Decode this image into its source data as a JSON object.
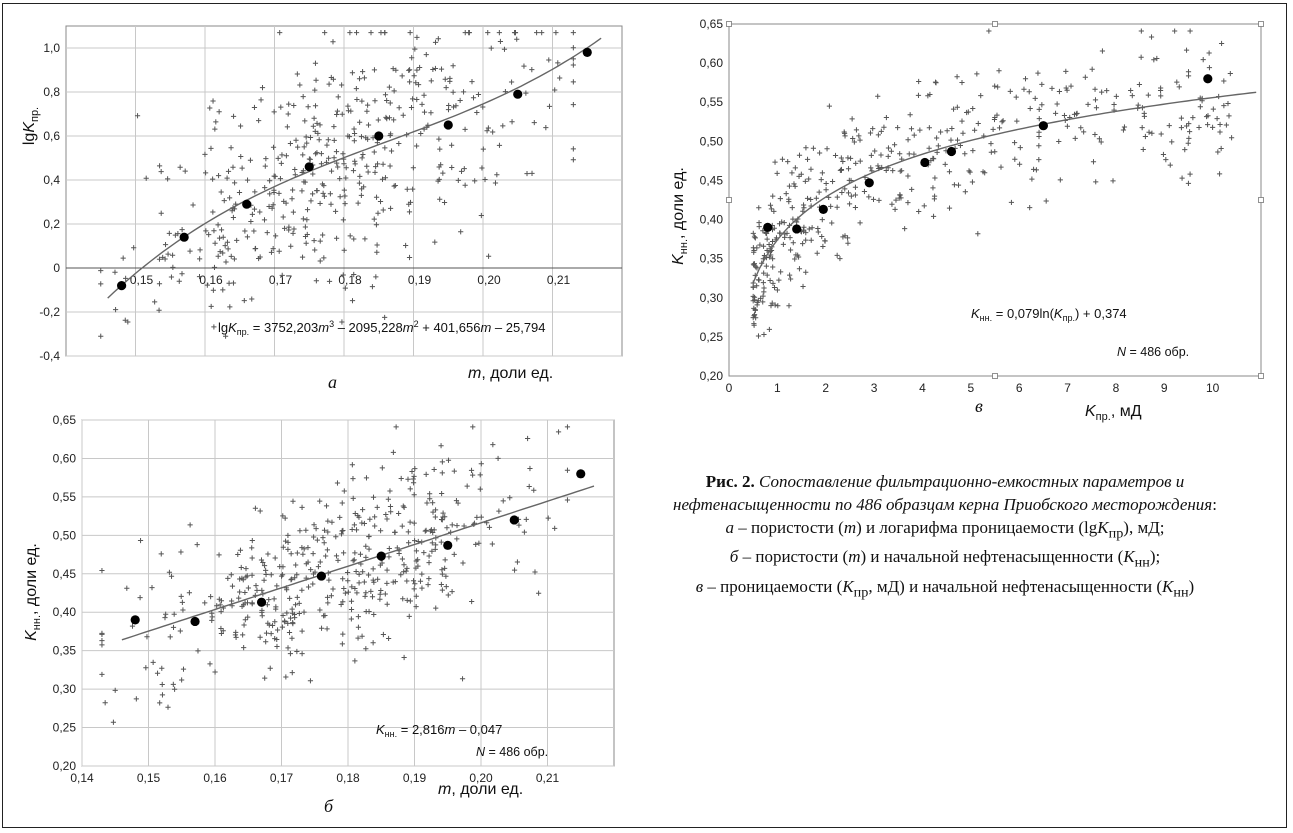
{
  "caption": {
    "title": "Рис. 2.",
    "text": "Сопоставление фильтрационно-емкостных параметров и нефтенасыщенности по 486 образцам керна Приобского месторождения",
    "items": [
      "а – пористости (m) и логарифма проницаемости (lgKпр), мД;",
      "б – пористости (m) и начальной нефтенасыщенности (Kнн);",
      "в – проницаемости (Kпр, мД) и начальной нефтенасыщенности (Kнн)"
    ]
  },
  "chart_data": [
    {
      "id": "a",
      "type": "scatter",
      "panel_letter": "а",
      "xlabel": "m, доли ед.",
      "ylabel": "lgKпр.",
      "xlim": [
        0.14,
        0.22
      ],
      "ylim": [
        -0.4,
        1.1
      ],
      "xticks": [
        0.15,
        0.16,
        0.17,
        0.18,
        0.19,
        0.2,
        0.21
      ],
      "xtick_labels": [
        "0,15",
        "0,16",
        "0,17",
        "0,18",
        "0,19",
        "0,20",
        "0,21"
      ],
      "yticks": [
        -0.4,
        -0.2,
        0,
        0.2,
        0.4,
        0.6,
        0.8,
        1.0
      ],
      "ytick_labels": [
        "-0,4",
        "-0,2",
        "0",
        "0,2",
        "0,4",
        "0,6",
        "0,8",
        "1,0"
      ],
      "grid": true,
      "equation": "lgKпр. = 3752,203m³ – 2095,228m² + 401,656m – 25,794",
      "trend": {
        "kind": "cubic",
        "coef": [
          3752.203,
          -2095.228,
          401.656,
          -25.794
        ],
        "xrange": [
          0.146,
          0.217
        ]
      },
      "bin_means": {
        "x": [
          0.148,
          0.157,
          0.166,
          0.175,
          0.185,
          0.195,
          0.205,
          0.215
        ],
        "y": [
          -0.08,
          0.14,
          0.29,
          0.46,
          0.6,
          0.65,
          0.79,
          0.98
        ]
      },
      "cloud": {
        "n": 486,
        "xrange": [
          0.145,
          0.213
        ],
        "spread": 0.26
      }
    },
    {
      "id": "b",
      "type": "scatter",
      "panel_letter": "б",
      "xlabel": "m, доли ед.",
      "ylabel": "Kнн., доли ед.",
      "xlim": [
        0.14,
        0.22
      ],
      "ylim": [
        0.2,
        0.65
      ],
      "xticks": [
        0.14,
        0.15,
        0.16,
        0.17,
        0.18,
        0.19,
        0.2,
        0.21
      ],
      "xtick_labels": [
        "0,14",
        "0,15",
        "0,16",
        "0,17",
        "0,18",
        "0,19",
        "0,20",
        "0,21"
      ],
      "yticks": [
        0.2,
        0.25,
        0.3,
        0.35,
        0.4,
        0.45,
        0.5,
        0.55,
        0.6,
        0.65
      ],
      "ytick_labels": [
        "0,20",
        "0,25",
        "0,30",
        "0,35",
        "0,40",
        "0,45",
        "0,50",
        "0,55",
        "0,60",
        "0,65"
      ],
      "grid": true,
      "equation": "Kнн. = 2,816m – 0,047",
      "n_label": "N = 486 обр.",
      "trend": {
        "kind": "linear",
        "coef": [
          2.816,
          -0.047
        ],
        "xrange": [
          0.146,
          0.217
        ]
      },
      "bin_means": {
        "x": [
          0.148,
          0.157,
          0.167,
          0.176,
          0.185,
          0.195,
          0.205,
          0.215
        ],
        "y": [
          0.39,
          0.388,
          0.413,
          0.447,
          0.473,
          0.487,
          0.52,
          0.58
        ]
      },
      "cloud": {
        "n": 486,
        "xrange": [
          0.143,
          0.213
        ],
        "spread": 0.055
      }
    },
    {
      "id": "v",
      "type": "scatter",
      "panel_letter": "в",
      "xlabel": "Kпр., мД",
      "ylabel": "Kнн., доли ед.",
      "xlim": [
        0,
        11
      ],
      "ylim": [
        0.2,
        0.65
      ],
      "xticks": [
        0,
        1,
        2,
        3,
        4,
        5,
        6,
        7,
        8,
        9,
        10
      ],
      "xtick_labels": [
        "0",
        "1",
        "2",
        "3",
        "4",
        "5",
        "6",
        "7",
        "8",
        "9",
        "10"
      ],
      "yticks": [
        0.2,
        0.25,
        0.3,
        0.35,
        0.4,
        0.45,
        0.5,
        0.55,
        0.6,
        0.65
      ],
      "ytick_labels": [
        "0,20",
        "0,25",
        "0,30",
        "0,35",
        "0,40",
        "0,45",
        "0,50",
        "0,55",
        "0,60",
        "0,65"
      ],
      "grid": false,
      "equation": "Kнн. = 0,079ln(Kпр.) + 0,374",
      "n_label": "N = 486 обр.",
      "trend": {
        "kind": "log",
        "coef": [
          0.079,
          0.374
        ],
        "xrange": [
          0.5,
          10.9
        ]
      },
      "bin_means": {
        "x": [
          0.8,
          1.4,
          1.95,
          2.9,
          4.05,
          4.6,
          6.5,
          9.9
        ],
        "y": [
          0.39,
          0.388,
          0.413,
          0.447,
          0.473,
          0.487,
          0.52,
          0.58
        ]
      },
      "cloud": {
        "n": 486,
        "xrange": [
          0.5,
          10.4
        ],
        "spread": 0.045
      }
    }
  ]
}
